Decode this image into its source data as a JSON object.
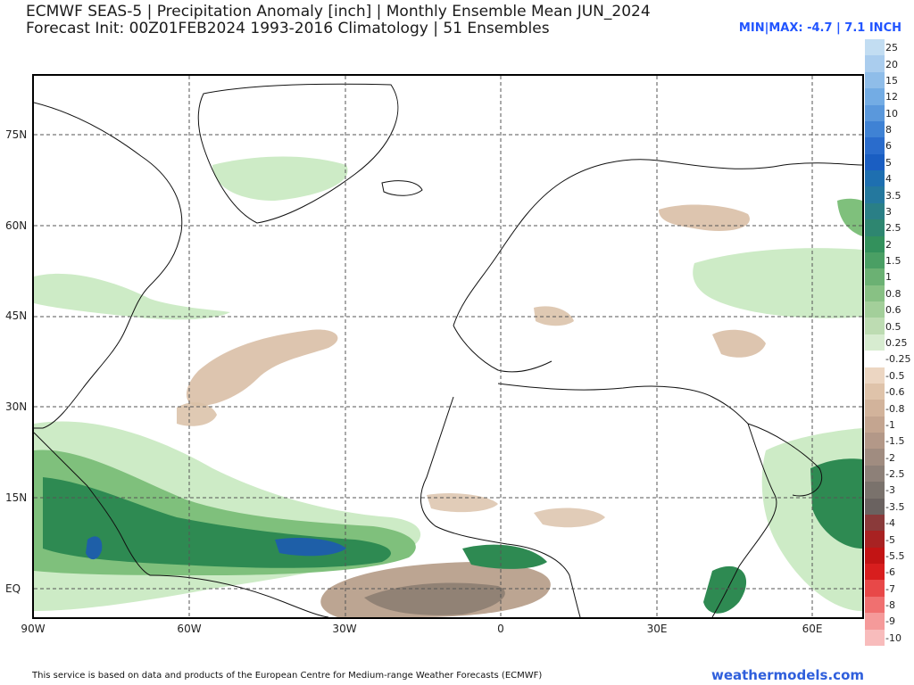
{
  "header": {
    "title_line1": "ECMWF SEAS-5 | Precipitation Anomaly [inch] | Monthly Ensemble Mean JUN_2024",
    "title_line2": "Forecast Init: 00Z01FEB2024    1993-2016 Climatology | 51 Ensembles",
    "minmax": "MIN|MAX: -4.7 | 7.1 INCH"
  },
  "map": {
    "lat_labels": [
      "75N",
      "60N",
      "45N",
      "30N",
      "15N",
      "EQ"
    ],
    "lon_labels": [
      "90W",
      "60W",
      "30W",
      "0",
      "30E",
      "60E"
    ],
    "lat_values": [
      75,
      60,
      45,
      30,
      15,
      0
    ],
    "lon_values": [
      -90,
      -60,
      -30,
      0,
      30,
      60
    ],
    "extent": {
      "lon_min": -90,
      "lon_max": 70,
      "lat_min": -5,
      "lat_max": 86
    },
    "colors": {
      "wet_light": "#cdebc6",
      "wet_mid": "#7fc07c",
      "wet_dark": "#2e8a52",
      "wet_deep": "#1e5fa8",
      "dry_light": "#d9bfa6",
      "dry_mid": "#b8a08c",
      "dry_dark": "#8a7b70",
      "dry_extreme": "#c04040"
    }
  },
  "colorbar": {
    "entries": [
      {
        "label": "25",
        "color": "#c2ddf2"
      },
      {
        "label": "20",
        "color": "#aacdee"
      },
      {
        "label": "15",
        "color": "#8fbde9"
      },
      {
        "label": "12",
        "color": "#73ace4"
      },
      {
        "label": "10",
        "color": "#5a98dc"
      },
      {
        "label": "8",
        "color": "#3f82d4"
      },
      {
        "label": "6",
        "color": "#2a6ccc"
      },
      {
        "label": "5",
        "color": "#1a5ec2"
      },
      {
        "label": "4",
        "color": "#1e6fb0"
      },
      {
        "label": "3.5",
        "color": "#24789e"
      },
      {
        "label": "3",
        "color": "#2a7f86"
      },
      {
        "label": "2.5",
        "color": "#2e8670"
      },
      {
        "label": "2",
        "color": "#33915c"
      },
      {
        "label": "1.5",
        "color": "#4a9f64"
      },
      {
        "label": "1",
        "color": "#6bb173"
      },
      {
        "label": "0.8",
        "color": "#88c184"
      },
      {
        "label": "0.6",
        "color": "#a3cf9a"
      },
      {
        "label": "0.5",
        "color": "#bddcb2"
      },
      {
        "label": "0.25",
        "color": "#d7ecd0"
      },
      {
        "label": "-0.25",
        "color": "#ffffff"
      },
      {
        "label": "-0.5",
        "color": "#ecd6c2"
      },
      {
        "label": "-0.6",
        "color": "#dfc3aa"
      },
      {
        "label": "-0.8",
        "color": "#d2b39b"
      },
      {
        "label": "-1",
        "color": "#c4a590"
      },
      {
        "label": "-1.5",
        "color": "#b39888"
      },
      {
        "label": "-2",
        "color": "#a08c80"
      },
      {
        "label": "-2.5",
        "color": "#8d8078"
      },
      {
        "label": "-3",
        "color": "#7a726c"
      },
      {
        "label": "-3.5",
        "color": "#6a6260"
      },
      {
        "label": "-4",
        "color": "#8a3a3a"
      },
      {
        "label": "-5",
        "color": "#a82222"
      },
      {
        "label": "-5.5",
        "color": "#c21414"
      },
      {
        "label": "-6",
        "color": "#d81e1e"
      },
      {
        "label": "-7",
        "color": "#e84848"
      },
      {
        "label": "-8",
        "color": "#f07070"
      },
      {
        "label": "-9",
        "color": "#f59a9a"
      },
      {
        "label": "-10",
        "color": "#f8bcbc"
      }
    ]
  },
  "footer": {
    "note": "This service is based on data and products of the European Centre for Medium-range Weather Forecasts (ECMWF)",
    "brand": "weathermodels.com"
  }
}
